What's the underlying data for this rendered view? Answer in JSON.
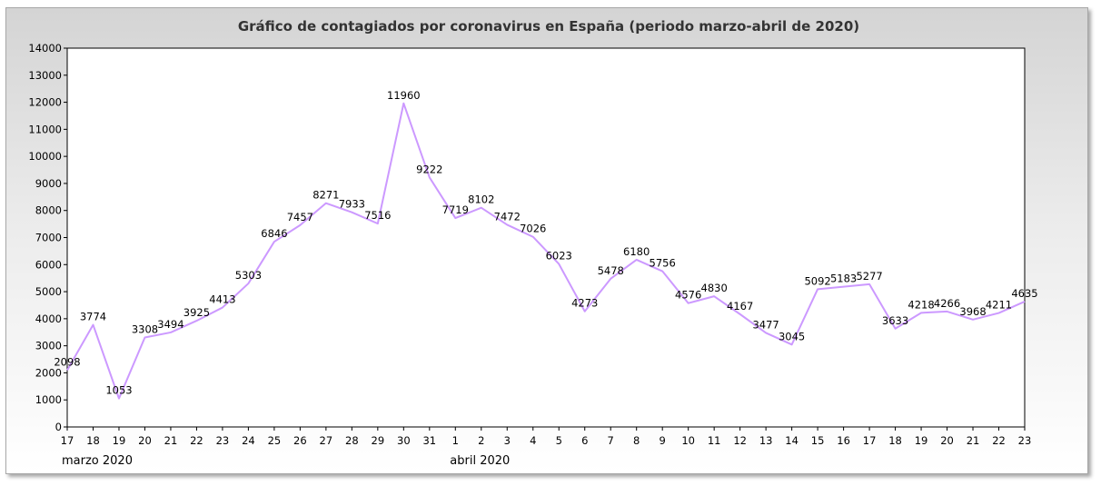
{
  "chart_data": {
    "type": "line",
    "title": "Gráfico de contagiados por coronavirus en España (periodo marzo-abril de 2020)",
    "xlabel": "",
    "ylabel": "",
    "ylim": [
      0,
      14000
    ],
    "y_ticks": [
      0,
      1000,
      2000,
      3000,
      4000,
      5000,
      6000,
      7000,
      8000,
      9000,
      10000,
      11000,
      12000,
      13000,
      14000
    ],
    "categories": [
      "17",
      "18",
      "19",
      "20",
      "21",
      "22",
      "23",
      "24",
      "25",
      "26",
      "27",
      "28",
      "29",
      "30",
      "31",
      "1",
      "2",
      "3",
      "4",
      "5",
      "6",
      "7",
      "8",
      "9",
      "10",
      "11",
      "12",
      "13",
      "14",
      "15",
      "16",
      "17",
      "18",
      "19",
      "20",
      "21",
      "22",
      "23"
    ],
    "category_groups": [
      {
        "label": "marzo 2020",
        "start_index": 0
      },
      {
        "label": "abril 2020",
        "start_index": 15
      }
    ],
    "series": [
      {
        "name": "Contagiados",
        "color": "#cc99ff",
        "values": [
          2098,
          3774,
          1053,
          3308,
          3494,
          3925,
          4413,
          5303,
          6846,
          7457,
          8271,
          7933,
          7516,
          11960,
          9222,
          7719,
          8102,
          7472,
          7026,
          6023,
          4273,
          5478,
          6180,
          5756,
          4576,
          4830,
          4167,
          3477,
          3045,
          5092,
          5183,
          5277,
          3633,
          4218,
          4266,
          3968,
          4211,
          4635
        ]
      }
    ],
    "grid": false,
    "legend": "none"
  },
  "colors": {
    "line": "#cc99ff",
    "axis": "#000000",
    "title": "#333333"
  }
}
